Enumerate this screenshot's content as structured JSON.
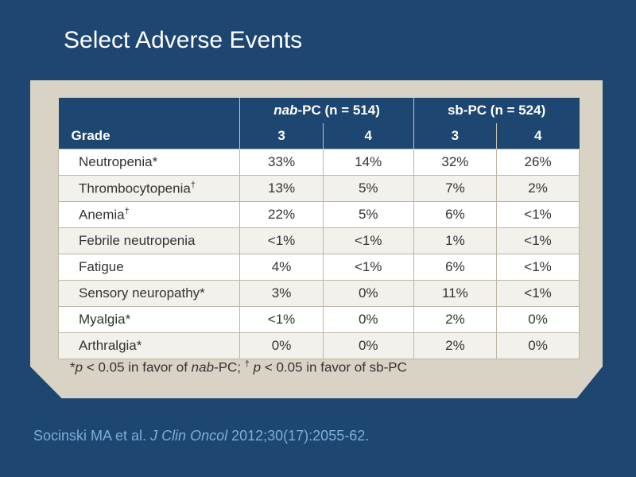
{
  "title": "Select Adverse Events",
  "table": {
    "group1_italic": "nab",
    "group1_rest": "-PC (n = 514)",
    "group2": "sb-PC (n = 524)",
    "grade_label": "Grade",
    "grades": [
      "3",
      "4",
      "3",
      "4"
    ],
    "rows": [
      {
        "name": "Neutropenia*",
        "sup": "",
        "values": [
          "33%",
          "14%",
          "32%",
          "26%"
        ]
      },
      {
        "name": "Thrombocytopenia",
        "sup": "†",
        "values": [
          "13%",
          "5%",
          "7%",
          "2%"
        ]
      },
      {
        "name": "Anemia",
        "sup": "†",
        "values": [
          "22%",
          "5%",
          "6%",
          "<1%"
        ]
      },
      {
        "name": "Febrile neutropenia",
        "sup": "",
        "values": [
          "<1%",
          "<1%",
          "1%",
          "<1%"
        ]
      },
      {
        "name": "Fatigue",
        "sup": "",
        "values": [
          "4%",
          "<1%",
          "6%",
          "<1%"
        ]
      },
      {
        "name": "Sensory neuropathy*",
        "sup": "",
        "values": [
          "3%",
          "0%",
          "11%",
          "<1%"
        ]
      },
      {
        "name": "Myalgia*",
        "sup": "",
        "values": [
          "<1%",
          "0%",
          "2%",
          "0%"
        ]
      },
      {
        "name": "Arthralgia*",
        "sup": "",
        "values": [
          "0%",
          "0%",
          "2%",
          "0%"
        ]
      }
    ]
  },
  "footnote": {
    "star": "*",
    "p1": "p",
    "t1": " < 0.05 in favor of ",
    "nab": "nab",
    "t2": "-PC; ",
    "dagger": "†",
    "p2": "p",
    "t3": " < 0.05 in favor of sb-PC"
  },
  "citation": {
    "authors": "Socinski MA et al. ",
    "journal": "J Clin Oncol",
    "ref": " 2012;30(17):2055-62."
  }
}
